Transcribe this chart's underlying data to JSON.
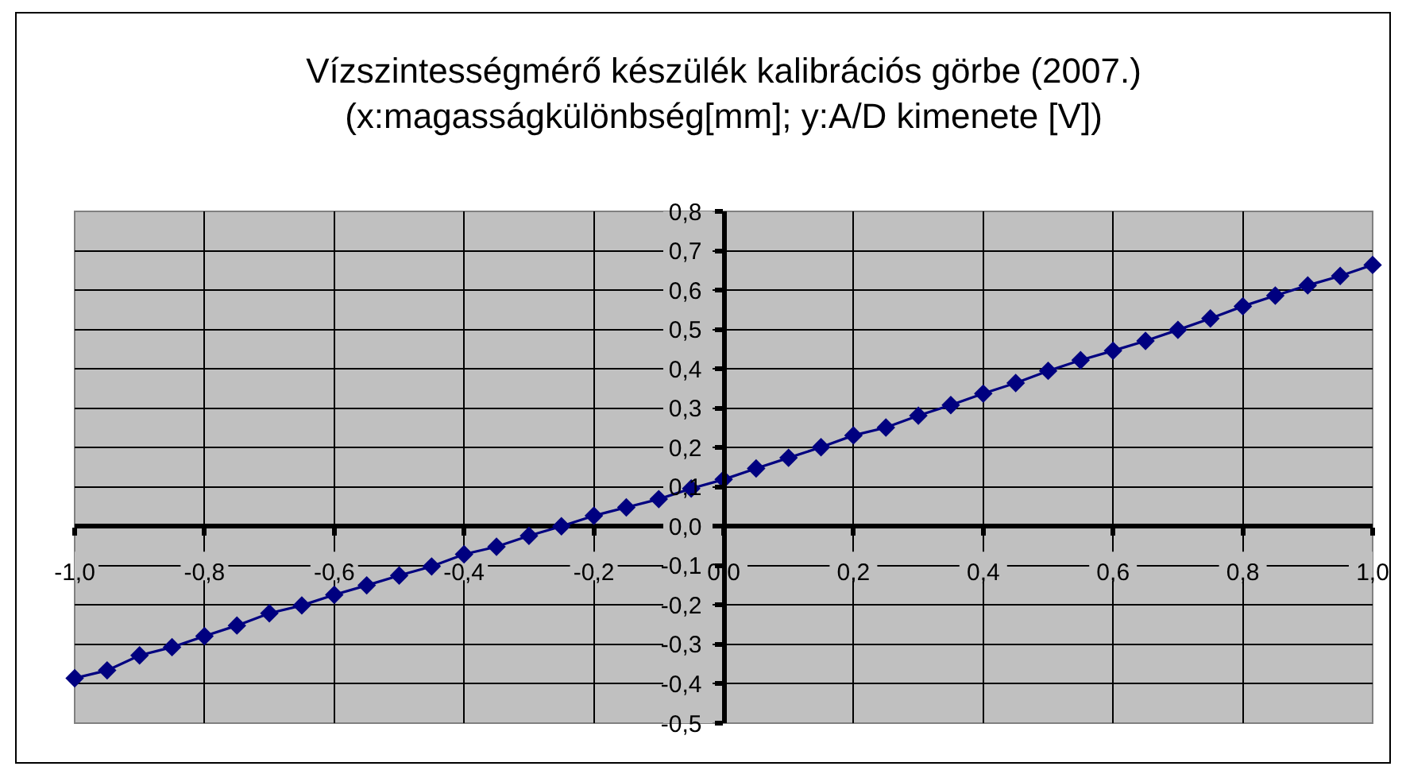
{
  "chart_data": {
    "type": "line",
    "title": "Vízszintességmérő készülék kalibrációs görbe (2007.)",
    "subtitle": "(x:magasságkülönbség[mm]; y:A/D kimenete [V])",
    "x": [
      -1.0,
      -0.95,
      -0.9,
      -0.85,
      -0.8,
      -0.75,
      -0.7,
      -0.65,
      -0.6,
      -0.55,
      -0.5,
      -0.45,
      -0.4,
      -0.35,
      -0.3,
      -0.25,
      -0.2,
      -0.15,
      -0.1,
      -0.05,
      0.0,
      0.05,
      0.1,
      0.15,
      0.2,
      0.25,
      0.3,
      0.35,
      0.4,
      0.45,
      0.5,
      0.55,
      0.6,
      0.65,
      0.7,
      0.75,
      0.8,
      0.85,
      0.9,
      0.95,
      1.0
    ],
    "series": [
      {
        "color": "#000080",
        "values": [
          -0.386,
          -0.366,
          -0.328,
          -0.307,
          -0.279,
          -0.252,
          -0.221,
          -0.201,
          -0.174,
          -0.15,
          -0.125,
          -0.102,
          -0.071,
          -0.052,
          -0.024,
          0.0,
          0.027,
          0.048,
          0.069,
          0.096,
          0.119,
          0.147,
          0.174,
          0.201,
          0.231,
          0.251,
          0.281,
          0.308,
          0.337,
          0.364,
          0.395,
          0.422,
          0.446,
          0.471,
          0.499,
          0.528,
          0.559,
          0.586,
          0.612,
          0.636,
          0.664
        ]
      }
    ],
    "xlim": [
      -1.0,
      1.0
    ],
    "xticks": [
      {
        "value": -1.0,
        "label": "-1,0"
      },
      {
        "value": -0.8,
        "label": "-0,8"
      },
      {
        "value": -0.6,
        "label": "-0,6"
      },
      {
        "value": -0.4,
        "label": "-0,4"
      },
      {
        "value": -0.2,
        "label": "-0,2"
      },
      {
        "value": 0.0,
        "label": "0,0"
      },
      {
        "value": 0.2,
        "label": "0,2"
      },
      {
        "value": 0.4,
        "label": "0,4"
      },
      {
        "value": 0.6,
        "label": "0,6"
      },
      {
        "value": 0.8,
        "label": "0,8"
      },
      {
        "value": 1.0,
        "label": "1,0"
      }
    ],
    "ylim": [
      -0.5,
      0.8
    ],
    "yticks": [
      {
        "value": -0.5,
        "label": "-0,5"
      },
      {
        "value": -0.4,
        "label": "-0,4"
      },
      {
        "value": -0.3,
        "label": "-0,3"
      },
      {
        "value": -0.2,
        "label": "-0,2"
      },
      {
        "value": -0.1,
        "label": "-0,1"
      },
      {
        "value": 0.0,
        "label": "0,0"
      },
      {
        "value": 0.1,
        "label": "0,1"
      },
      {
        "value": 0.2,
        "label": "0,2"
      },
      {
        "value": 0.3,
        "label": "0,3"
      },
      {
        "value": 0.4,
        "label": "0,4"
      },
      {
        "value": 0.5,
        "label": "0,5"
      },
      {
        "value": 0.6,
        "label": "0,6"
      },
      {
        "value": 0.7,
        "label": "0,7"
      },
      {
        "value": 0.8,
        "label": "0,8"
      }
    ],
    "grid": true,
    "marker": "diamond",
    "line_style": "solid"
  }
}
